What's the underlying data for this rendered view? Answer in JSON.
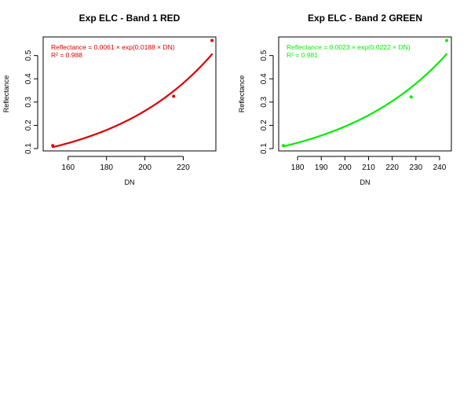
{
  "chart_data": [
    {
      "type": "scatter",
      "title": "Exp ELC - Band 1 RED",
      "xlabel": "DN",
      "ylabel": "Reflectance",
      "xlim": [
        147,
        237
      ],
      "ylim": [
        0.09,
        0.58
      ],
      "xticks": [
        160,
        180,
        200,
        220
      ],
      "yticks": [
        0.1,
        0.2,
        0.3,
        0.4,
        0.5
      ],
      "xtick_labels": [
        "160",
        "180",
        "200",
        "220"
      ],
      "ytick_labels": [
        "0.1",
        "0.2",
        "0.3",
        "0.4",
        "0.5"
      ],
      "grid": false,
      "color": "#dd0000",
      "annotation": [
        "Reflectance = 0.0061 × exp(0.0188 × DN)",
        "R² = 0.988"
      ],
      "fit": {
        "model": "exponential",
        "a": 0.0061,
        "b": 0.0188,
        "x_range": [
          152,
          235
        ]
      },
      "points": [
        {
          "x": 152,
          "y": 0.113
        },
        {
          "x": 215,
          "y": 0.325
        },
        {
          "x": 235,
          "y": 0.565
        }
      ]
    },
    {
      "type": "scatter",
      "title": "Exp ELC - Band 2 GREEN",
      "xlabel": "DN",
      "ylabel": "Reflectance",
      "xlim": [
        172,
        245
      ],
      "ylim": [
        0.09,
        0.58
      ],
      "xticks": [
        180,
        190,
        200,
        210,
        220,
        230,
        240
      ],
      "yticks": [
        0.1,
        0.2,
        0.3,
        0.4,
        0.5
      ],
      "xtick_labels": [
        "180",
        "190",
        "200",
        "210",
        "220",
        "230",
        "240"
      ],
      "ytick_labels": [
        "0.1",
        "0.2",
        "0.3",
        "0.4",
        "0.5"
      ],
      "grid": false,
      "color": "#00ee00",
      "annotation": [
        "Reflectance = 0.0023 × exp(0.0222 × DN)",
        "R² = 0.981"
      ],
      "fit": {
        "model": "exponential",
        "a": 0.0023,
        "b": 0.0222,
        "x_range": [
          174,
          243
        ]
      },
      "points": [
        {
          "x": 174,
          "y": 0.113
        },
        {
          "x": 228,
          "y": 0.322
        },
        {
          "x": 243,
          "y": 0.565
        }
      ]
    }
  ]
}
